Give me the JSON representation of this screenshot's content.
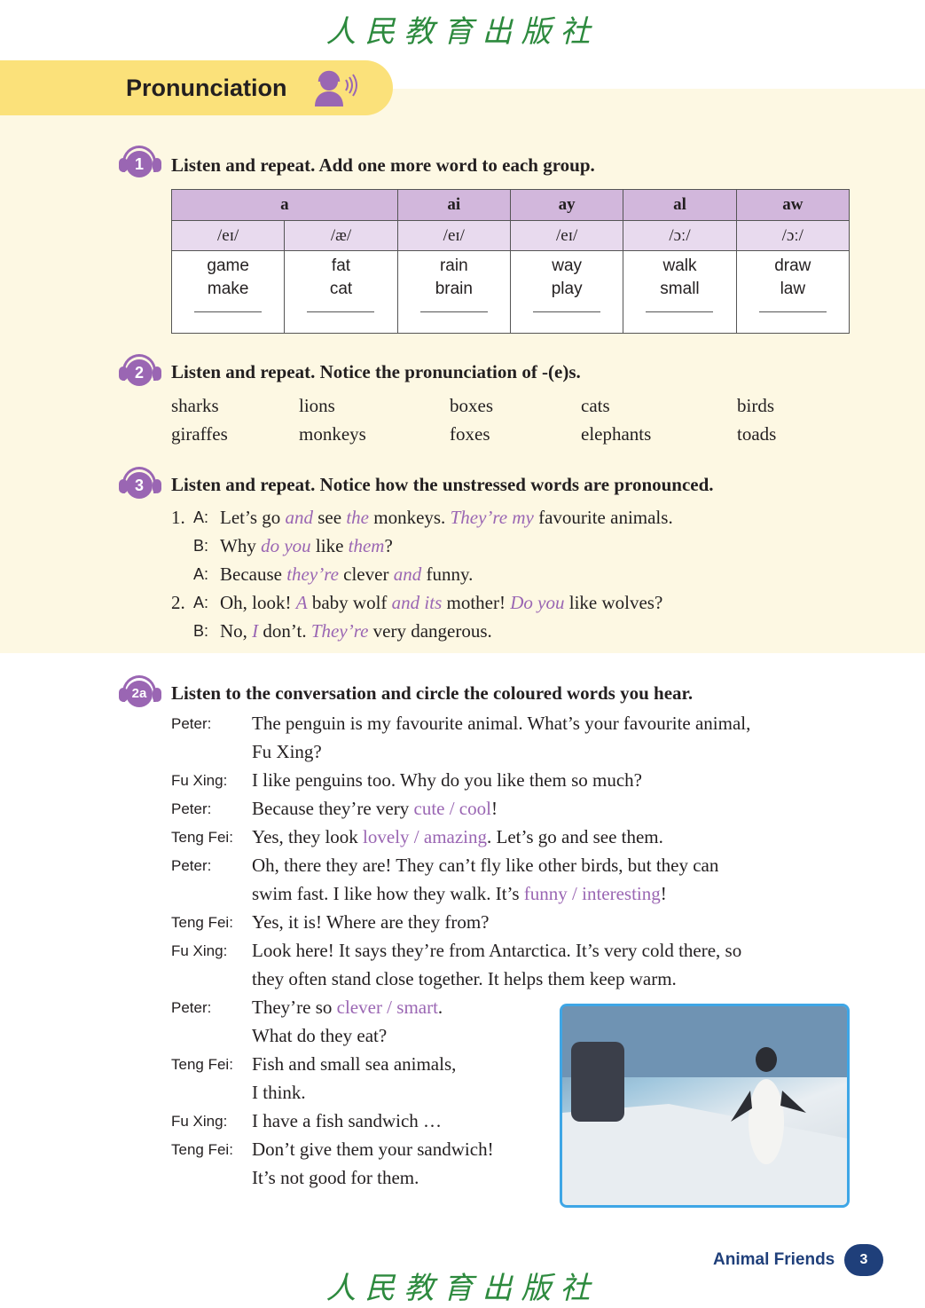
{
  "logo_text": "人民教育出版社",
  "section_title": "Pronunciation",
  "accent": "#9a66b3",
  "header_bg": "#fbe17a",
  "panel_bg": "#fdf8e3",
  "ex1": {
    "badge": "1",
    "instruction": "Listen and repeat. Add one more word to each group.",
    "groups": [
      {
        "letters": "a",
        "span": 2
      },
      {
        "letters": "ai"
      },
      {
        "letters": "ay"
      },
      {
        "letters": "al"
      },
      {
        "letters": "aw"
      }
    ],
    "sounds": [
      "/eɪ/",
      "/æ/",
      "/eɪ/",
      "/eɪ/",
      "/ɔː/",
      "/ɔː/"
    ],
    "words": [
      [
        "game",
        "make"
      ],
      [
        "fat",
        "cat"
      ],
      [
        "rain",
        "brain"
      ],
      [
        "way",
        "play"
      ],
      [
        "walk",
        "small"
      ],
      [
        "draw",
        "law"
      ]
    ]
  },
  "ex2": {
    "badge": "2",
    "instruction": "Listen and repeat. Notice the pronunciation of -(e)s.",
    "words": [
      [
        "sharks",
        "giraffes"
      ],
      [
        "lions",
        "monkeys"
      ],
      [
        "boxes",
        "foxes"
      ],
      [
        "cats",
        "elephants"
      ],
      [
        "birds",
        "toads"
      ]
    ]
  },
  "ex3": {
    "badge": "3",
    "instruction": "Listen and repeat. Notice how the unstressed words are pronounced.",
    "lines": [
      {
        "num": "1.",
        "spk": "A:",
        "segs": [
          [
            "Let’s go ",
            0
          ],
          [
            "and",
            1
          ],
          [
            " see ",
            0
          ],
          [
            "the",
            1
          ],
          [
            " monkeys. ",
            0
          ],
          [
            "They’re my",
            1
          ],
          [
            " favourite animals.",
            0
          ]
        ]
      },
      {
        "num": "",
        "spk": "B:",
        "segs": [
          [
            "Why ",
            0
          ],
          [
            "do you",
            1
          ],
          [
            " like ",
            0
          ],
          [
            "them",
            1
          ],
          [
            "?",
            0
          ]
        ]
      },
      {
        "num": "",
        "spk": "A:",
        "segs": [
          [
            "Because ",
            0
          ],
          [
            "they’re",
            1
          ],
          [
            " clever ",
            0
          ],
          [
            "and",
            1
          ],
          [
            " funny.",
            0
          ]
        ]
      },
      {
        "num": "2.",
        "spk": "A:",
        "segs": [
          [
            "Oh, look! ",
            0
          ],
          [
            "A",
            1
          ],
          [
            " baby wolf ",
            0
          ],
          [
            "and its",
            1
          ],
          [
            " mother! ",
            0
          ],
          [
            "Do you",
            1
          ],
          [
            " like wolves?",
            0
          ]
        ]
      },
      {
        "num": "",
        "spk": "B:",
        "segs": [
          [
            "No, ",
            0
          ],
          [
            "I",
            1
          ],
          [
            " don’t. ",
            0
          ],
          [
            "They’re",
            1
          ],
          [
            " very dangerous.",
            0
          ]
        ]
      }
    ]
  },
  "ex2a": {
    "badge": "2a",
    "instruction": "Listen to the conversation and circle the coloured words you hear.",
    "lines": [
      {
        "spk": "Peter:",
        "segs": [
          [
            "The penguin is my favourite animal. What’s your favourite animal,",
            0
          ]
        ]
      },
      {
        "spk": "",
        "segs": [
          [
            "Fu Xing?",
            0
          ]
        ]
      },
      {
        "spk": "Fu Xing:",
        "segs": [
          [
            "I like penguins too. Why do you like them so much?",
            0
          ]
        ]
      },
      {
        "spk": "Peter:",
        "segs": [
          [
            "Because they’re very ",
            0
          ],
          [
            "cute / cool",
            1
          ],
          [
            "!",
            0
          ]
        ]
      },
      {
        "spk": "Teng Fei:",
        "segs": [
          [
            "Yes, they look ",
            0
          ],
          [
            "lovely / amazing",
            1
          ],
          [
            ". Let’s go and see them.",
            0
          ]
        ]
      },
      {
        "spk": "Peter:",
        "segs": [
          [
            "Oh, there they are! They can’t fly like other birds, but they can",
            0
          ]
        ]
      },
      {
        "spk": "",
        "segs": [
          [
            "swim fast. I like how they walk. It’s ",
            0
          ],
          [
            "funny / interesting",
            1
          ],
          [
            "!",
            0
          ]
        ]
      },
      {
        "spk": "Teng Fei:",
        "segs": [
          [
            "Yes, it is! Where are they from?",
            0
          ]
        ]
      },
      {
        "spk": "Fu Xing:",
        "segs": [
          [
            "Look here! It says they’re from Antarctica. It’s very cold there, so",
            0
          ]
        ]
      },
      {
        "spk": "",
        "segs": [
          [
            "they often stand close together. It helps them keep warm.",
            0
          ]
        ]
      },
      {
        "spk": "Peter:",
        "segs": [
          [
            "They’re so ",
            0
          ],
          [
            "clever / smart",
            1
          ],
          [
            ".",
            0
          ]
        ]
      },
      {
        "spk": "",
        "segs": [
          [
            "What do they eat?",
            0
          ]
        ]
      },
      {
        "spk": "Teng Fei:",
        "segs": [
          [
            "Fish and small sea animals,",
            0
          ]
        ]
      },
      {
        "spk": "",
        "segs": [
          [
            "I think.",
            0
          ]
        ]
      },
      {
        "spk": "Fu Xing:",
        "segs": [
          [
            "I have a fish sandwich …",
            0
          ]
        ]
      },
      {
        "spk": "Teng Fei:",
        "segs": [
          [
            "Don’t give them your sandwich!",
            0
          ]
        ]
      },
      {
        "spk": "",
        "segs": [
          [
            "It’s not good for them.",
            0
          ]
        ]
      }
    ]
  },
  "footer": {
    "unit": "Animal Friends",
    "page": "3"
  }
}
